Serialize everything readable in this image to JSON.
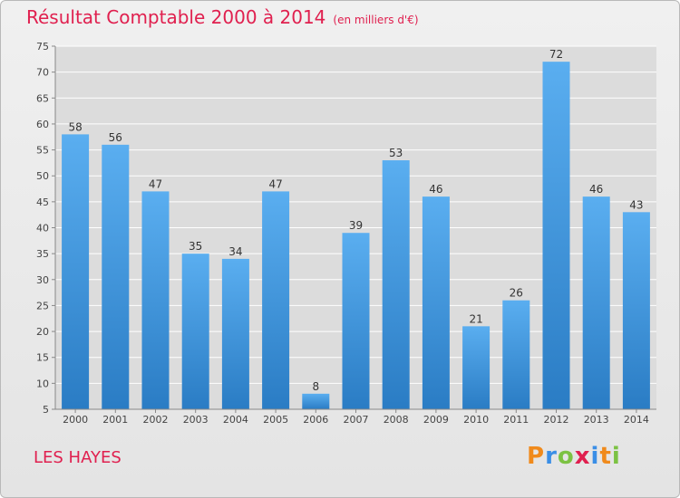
{
  "title": "Résultat Comptable 2000 à 2014",
  "subtitle": "(en milliers d'€)",
  "commune": "LES HAYES",
  "logo": {
    "text": "Proxiti",
    "letters": [
      {
        "ch": "P",
        "color": "#f08a1c"
      },
      {
        "ch": "r",
        "color": "#3a8ee6"
      },
      {
        "ch": "o",
        "color": "#7cc243"
      },
      {
        "ch": "x",
        "color": "#e0204f"
      },
      {
        "ch": "i",
        "color": "#3a8ee6"
      },
      {
        "ch": "t",
        "color": "#f08a1c"
      },
      {
        "ch": "i",
        "color": "#7cc243"
      }
    ]
  },
  "colors": {
    "title": "#e0204f",
    "bar_light": "#5aaef0",
    "bar_dark": "#2a7cc4",
    "grid": "#ffffff"
  },
  "chart_data": {
    "type": "bar",
    "title": "Résultat Comptable 2000 à 2014",
    "subtitle": "(en milliers d'€)",
    "categories": [
      "2000",
      "2001",
      "2002",
      "2003",
      "2004",
      "2005",
      "2006",
      "2007",
      "2008",
      "2009",
      "2010",
      "2011",
      "2012",
      "2013",
      "2014"
    ],
    "values": [
      58,
      56,
      47,
      35,
      34,
      47,
      8,
      39,
      53,
      46,
      21,
      26,
      72,
      46,
      43
    ],
    "ylim": [
      5,
      75
    ],
    "yticks": [
      5,
      10,
      15,
      20,
      25,
      30,
      35,
      40,
      45,
      50,
      55,
      60,
      65,
      70,
      75
    ],
    "grid": true
  }
}
